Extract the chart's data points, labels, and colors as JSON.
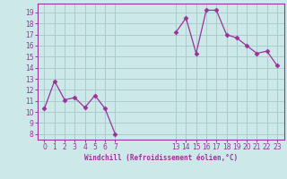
{
  "line_color": "#993399",
  "marker_color": "#993399",
  "bg_color": "#cce8e8",
  "grid_color": "#aacccc",
  "xlabel": "Windchill (Refroidissement éolien,°C)",
  "yticks": [
    8,
    9,
    10,
    11,
    12,
    13,
    14,
    15,
    16,
    17,
    18,
    19
  ],
  "ylim": [
    7.5,
    19.8
  ],
  "xlim": [
    -0.7,
    23.7
  ],
  "tick_color": "#993399",
  "label_color": "#993399",
  "segment1_x": [
    0,
    1,
    2,
    3,
    4,
    5,
    6,
    7
  ],
  "segment1_y": [
    10.3,
    12.8,
    11.1,
    11.3,
    10.4,
    11.5,
    10.3,
    8.0
  ],
  "segment2_x": [
    13,
    14,
    15,
    16,
    17,
    18,
    19,
    20,
    21,
    22,
    23
  ],
  "segment2_y": [
    17.2,
    18.5,
    15.3,
    19.2,
    19.2,
    17.0,
    16.7,
    16.0,
    15.3,
    15.5,
    14.2
  ],
  "xtick_positions": [
    0,
    1,
    2,
    3,
    4,
    5,
    6,
    7,
    13,
    14,
    15,
    16,
    17,
    18,
    19,
    20,
    21,
    22,
    23
  ],
  "xtick_labels": [
    "0",
    "1",
    "2",
    "3",
    "4",
    "5",
    "6",
    "7",
    "13",
    "14",
    "15",
    "16",
    "17",
    "18",
    "19",
    "20",
    "21",
    "22",
    "23"
  ]
}
